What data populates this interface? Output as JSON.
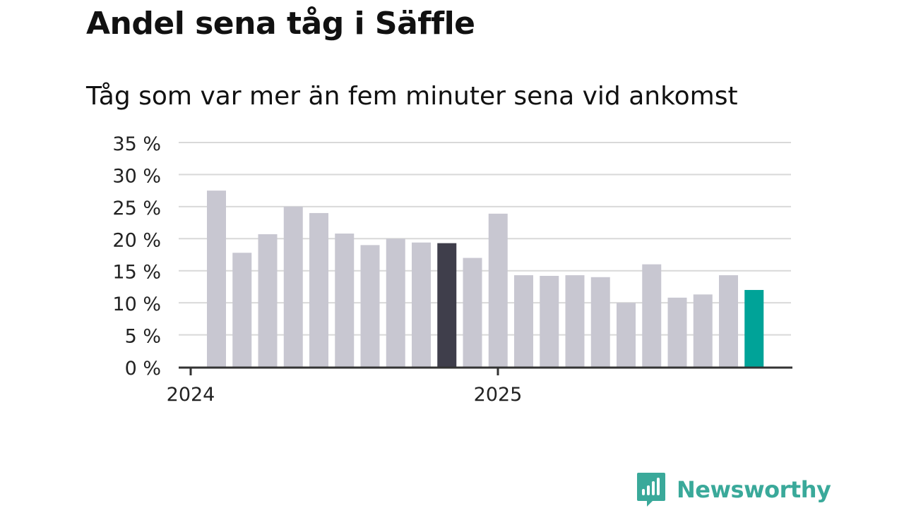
{
  "header": {
    "title": "Andel sena tåg i Säffle",
    "subtitle": "Tåg som var mer än fem minuter sena vid ankomst"
  },
  "brand": {
    "name": "Newsworthy",
    "icon": "newsworthy-logo-icon",
    "color": "#3aa99a"
  },
  "colors": {
    "bar": "#c8c7d1",
    "highlight_previous_year": "#3f3e4b",
    "highlight_latest": "#00a398",
    "grid": "#d9d9d9",
    "axis": "#333333"
  },
  "chart_data": {
    "type": "bar",
    "y_tick_labels": [
      "0 %",
      "5 %",
      "10 %",
      "15 %",
      "20 %",
      "25 %",
      "30 %",
      "35 %"
    ],
    "x_tick_labels": [
      "2024",
      "2025"
    ],
    "ylim": [
      0,
      35
    ],
    "y_ticks": [
      0,
      5,
      10,
      15,
      20,
      25,
      30,
      35
    ],
    "grid": true,
    "categories": [
      "2024-01",
      "2024-02",
      "2024-03",
      "2024-04",
      "2024-05",
      "2024-06",
      "2024-07",
      "2024-08",
      "2024-09",
      "2024-10",
      "2024-11",
      "2024-12",
      "2025-01",
      "2025-02",
      "2025-03",
      "2025-04",
      "2025-05",
      "2025-06",
      "2025-07",
      "2025-08",
      "2025-09",
      "2025-10"
    ],
    "values": [
      27.5,
      17.8,
      20.7,
      25.0,
      24.0,
      20.8,
      19.0,
      20.0,
      19.4,
      19.3,
      17.0,
      23.9,
      14.3,
      14.2,
      14.3,
      14.0,
      10.0,
      16.0,
      10.8,
      11.3,
      14.3,
      12.0
    ],
    "highlight": {
      "2024-10": "previous_year",
      "2025-10": "latest"
    }
  }
}
